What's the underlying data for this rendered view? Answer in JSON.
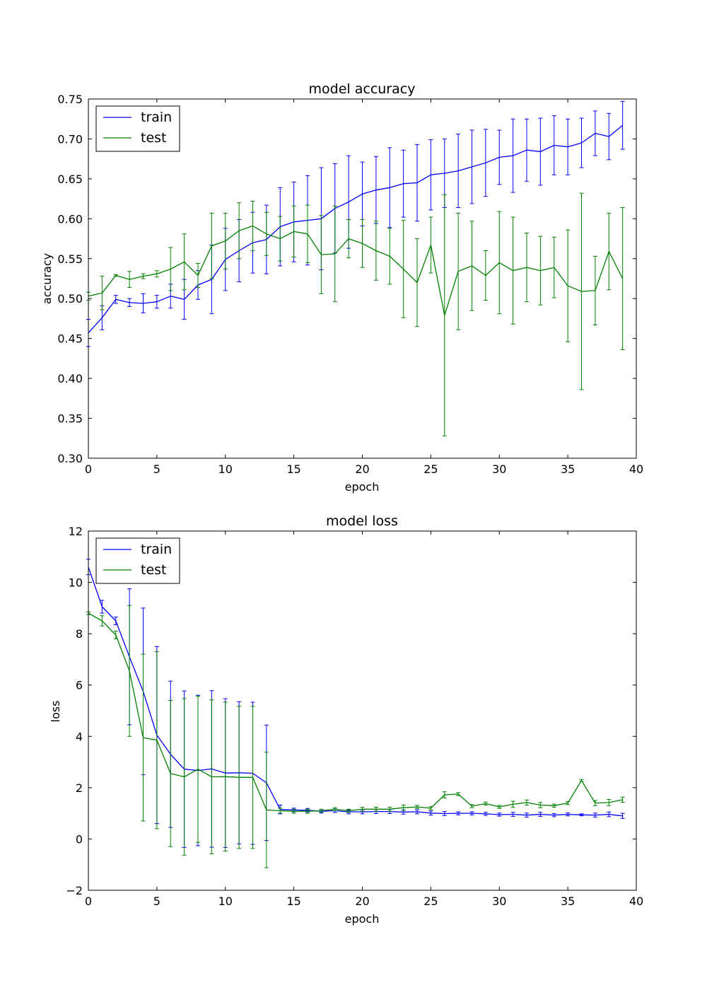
{
  "chart_data": [
    {
      "type": "line",
      "title": "model accuracy",
      "xlabel": "epoch",
      "ylabel": "accuracy",
      "xlim": [
        0,
        40
      ],
      "ylim": [
        0.3,
        0.75
      ],
      "xticks": [
        "0",
        "5",
        "10",
        "15",
        "20",
        "25",
        "30",
        "35",
        "40"
      ],
      "yticks": [
        "0.30",
        "0.35",
        "0.40",
        "0.45",
        "0.50",
        "0.55",
        "0.60",
        "0.65",
        "0.70",
        "0.75"
      ],
      "legend_location": "upper-left",
      "x": [
        0,
        1,
        2,
        3,
        4,
        5,
        6,
        7,
        8,
        9,
        10,
        11,
        12,
        13,
        14,
        15,
        16,
        17,
        18,
        19,
        20,
        21,
        22,
        23,
        24,
        25,
        26,
        27,
        28,
        29,
        30,
        31,
        32,
        33,
        34,
        35,
        36,
        37,
        38,
        39
      ],
      "series": [
        {
          "name": "train",
          "color": "#0000ff",
          "values": [
            0.457,
            0.476,
            0.499,
            0.495,
            0.494,
            0.496,
            0.503,
            0.499,
            0.517,
            0.524,
            0.549,
            0.56,
            0.57,
            0.574,
            0.59,
            0.596,
            0.598,
            0.6,
            0.613,
            0.621,
            0.631,
            0.636,
            0.639,
            0.644,
            0.645,
            0.655,
            0.657,
            0.66,
            0.665,
            0.67,
            0.677,
            0.679,
            0.686,
            0.684,
            0.692,
            0.69,
            0.695,
            0.707,
            0.703,
            0.717
          ],
          "errors": [
            0.017,
            0.015,
            0.005,
            0.005,
            0.012,
            0.008,
            0.015,
            0.025,
            0.018,
            0.043,
            0.039,
            0.039,
            0.038,
            0.043,
            0.049,
            0.05,
            0.056,
            0.064,
            0.056,
            0.058,
            0.04,
            0.042,
            0.05,
            0.042,
            0.048,
            0.044,
            0.043,
            0.046,
            0.046,
            0.042,
            0.034,
            0.046,
            0.039,
            0.042,
            0.037,
            0.035,
            0.031,
            0.028,
            0.029,
            0.03
          ]
        },
        {
          "name": "test",
          "color": "#008000",
          "values": [
            0.503,
            0.507,
            0.529,
            0.524,
            0.528,
            0.531,
            0.537,
            0.546,
            0.529,
            0.566,
            0.572,
            0.585,
            0.591,
            0.581,
            0.575,
            0.584,
            0.581,
            0.555,
            0.556,
            0.575,
            0.569,
            0.56,
            0.553,
            0.537,
            0.52,
            0.567,
            0.479,
            0.534,
            0.541,
            0.529,
            0.545,
            0.535,
            0.539,
            0.535,
            0.539,
            0.516,
            0.509,
            0.51,
            0.559,
            0.525
          ],
          "errors": [
            0.005,
            0.021,
            0.001,
            0.01,
            0.003,
            0.004,
            0.027,
            0.035,
            0.015,
            0.041,
            0.035,
            0.035,
            0.031,
            0.027,
            0.028,
            0.032,
            0.036,
            0.049,
            0.06,
            0.024,
            0.03,
            0.037,
            0.035,
            0.061,
            0.055,
            0.035,
            0.151,
            0.073,
            0.056,
            0.031,
            0.064,
            0.067,
            0.043,
            0.043,
            0.038,
            0.07,
            0.123,
            0.043,
            0.048,
            0.089
          ]
        }
      ]
    },
    {
      "type": "line",
      "title": "model loss",
      "xlabel": "epoch",
      "ylabel": "loss",
      "xlim": [
        0,
        40
      ],
      "ylim": [
        -2,
        12
      ],
      "xticks": [
        "0",
        "5",
        "10",
        "15",
        "20",
        "25",
        "30",
        "35",
        "40"
      ],
      "yticks": [
        "−2",
        "0",
        "2",
        "4",
        "6",
        "8",
        "10",
        "12"
      ],
      "legend_location": "upper-left",
      "x": [
        0,
        1,
        2,
        3,
        4,
        5,
        6,
        7,
        8,
        9,
        10,
        11,
        12,
        13,
        14,
        15,
        16,
        17,
        18,
        19,
        20,
        21,
        22,
        23,
        24,
        25,
        26,
        27,
        28,
        29,
        30,
        31,
        32,
        33,
        34,
        35,
        36,
        37,
        38,
        39
      ],
      "series": [
        {
          "name": "train",
          "color": "#0000ff",
          "values": [
            10.6,
            9.05,
            8.5,
            7.1,
            5.75,
            4.05,
            3.3,
            2.72,
            2.67,
            2.73,
            2.57,
            2.58,
            2.56,
            2.19,
            1.15,
            1.13,
            1.12,
            1.08,
            1.1,
            1.06,
            1.06,
            1.07,
            1.07,
            1.05,
            1.06,
            1.01,
            0.99,
            1.0,
            1.0,
            0.98,
            0.95,
            0.96,
            0.93,
            0.96,
            0.93,
            0.96,
            0.94,
            0.93,
            0.96,
            0.9
          ],
          "errors": [
            0.3,
            0.25,
            0.15,
            2.65,
            3.25,
            3.45,
            2.85,
            3.05,
            2.93,
            3.05,
            2.9,
            2.77,
            2.77,
            2.25,
            0.17,
            0.07,
            0.07,
            0.07,
            0.07,
            0.08,
            0.08,
            0.08,
            0.08,
            0.08,
            0.08,
            0.08,
            0.08,
            0.06,
            0.06,
            0.06,
            0.06,
            0.08,
            0.08,
            0.08,
            0.06,
            0.06,
            0.04,
            0.08,
            0.09,
            0.1
          ]
        },
        {
          "name": "test",
          "color": "#008000",
          "values": [
            8.8,
            8.5,
            7.95,
            6.55,
            3.95,
            3.85,
            2.55,
            2.42,
            2.72,
            2.42,
            2.43,
            2.4,
            2.4,
            1.13,
            1.1,
            1.08,
            1.08,
            1.1,
            1.16,
            1.1,
            1.16,
            1.16,
            1.16,
            1.22,
            1.25,
            1.2,
            1.72,
            1.75,
            1.28,
            1.38,
            1.25,
            1.35,
            1.42,
            1.32,
            1.3,
            1.4,
            2.28,
            1.4,
            1.42,
            1.53
          ],
          "errors": [
            0.05,
            0.2,
            0.15,
            2.55,
            3.25,
            3.45,
            2.85,
            3.05,
            2.85,
            3.0,
            2.9,
            2.77,
            2.77,
            2.25,
            0.1,
            0.08,
            0.08,
            0.06,
            0.06,
            0.06,
            0.08,
            0.08,
            0.08,
            0.1,
            0.06,
            0.06,
            0.12,
            0.06,
            0.06,
            0.06,
            0.06,
            0.12,
            0.1,
            0.1,
            0.06,
            0.06,
            0.04,
            0.1,
            0.12,
            0.1
          ]
        }
      ]
    }
  ]
}
